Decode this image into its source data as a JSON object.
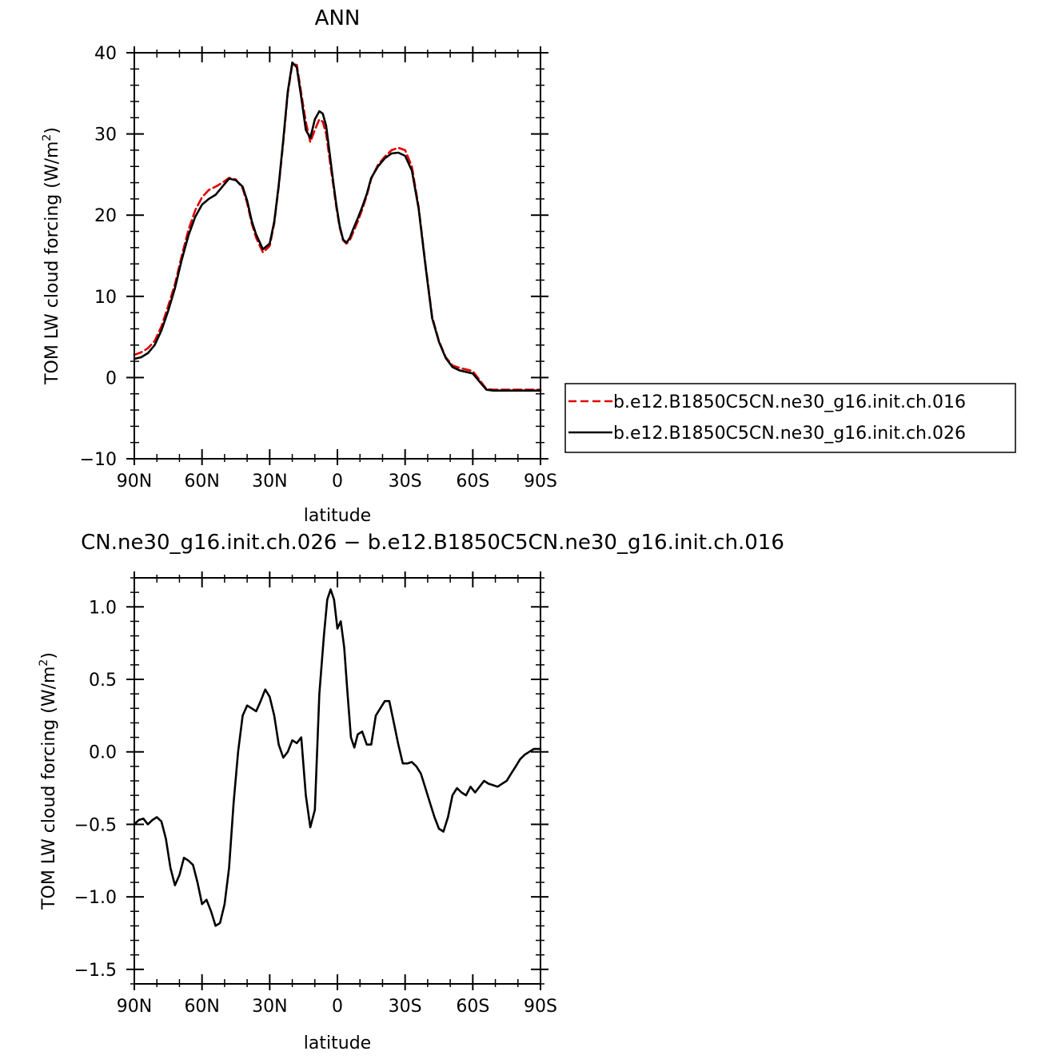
{
  "chart_data": [
    {
      "type": "line",
      "title": "ANN",
      "xlabel": "latitude",
      "ylabel": "TOM LW cloud forcing (W/m",
      "ylabel_sup": "2",
      "ylabel_end": ")",
      "xlim": [
        90,
        -90
      ],
      "ylim": [
        -10,
        40
      ],
      "xticks": [
        90,
        60,
        30,
        0,
        -30,
        -60,
        -90
      ],
      "xtick_labels": [
        "90N",
        "60N",
        "30N",
        "0",
        "30S",
        "60S",
        "90S"
      ],
      "yticks": [
        -10,
        0,
        10,
        20,
        30,
        40
      ],
      "ytick_labels": [
        "−10",
        "0",
        "10",
        "20",
        "30",
        "40"
      ],
      "legend_position": "right",
      "series": [
        {
          "name": "b.e12.B1850C5CN.ne30_g16.init.ch.016",
          "color": "#e00000",
          "dash": "dashed",
          "x": [
            90,
            87,
            84,
            81,
            78,
            75,
            72,
            69,
            66,
            63,
            60,
            57,
            54,
            51,
            48,
            45,
            42,
            40,
            38,
            36,
            33,
            30,
            28,
            26,
            24,
            22,
            20,
            18,
            16,
            14,
            12,
            10,
            8,
            6.5,
            5,
            3.5,
            2,
            0.5,
            -1,
            -2.5,
            -4,
            -5.5,
            -7,
            -9,
            -11,
            -13,
            -15,
            -18,
            -21,
            -24,
            -27,
            -30,
            -33,
            -36,
            -39,
            -42,
            -45,
            -48,
            -51,
            -54,
            -57,
            -60,
            -63,
            -66,
            -69,
            -72,
            -75,
            -78,
            -81,
            -84,
            -87,
            -90
          ],
          "y": [
            2.8,
            3.1,
            3.6,
            4.5,
            6.3,
            8.8,
            11.5,
            15.0,
            18.2,
            20.6,
            22.2,
            23.1,
            23.5,
            24.0,
            24.6,
            24.4,
            23.3,
            21.5,
            19.0,
            17.2,
            15.4,
            16.2,
            19.0,
            23.5,
            29.0,
            35.0,
            38.6,
            38.5,
            35.0,
            31.5,
            29.0,
            30.5,
            31.8,
            31.5,
            30.0,
            27.0,
            24.0,
            21.0,
            18.5,
            16.9,
            16.5,
            16.9,
            17.9,
            19.2,
            20.7,
            22.4,
            24.5,
            26.2,
            27.2,
            28.0,
            28.3,
            28.0,
            26.0,
            21.0,
            14.0,
            7.5,
            4.5,
            2.5,
            1.5,
            1.2,
            1.0,
            0.8,
            -0.3,
            -1.4,
            -1.5,
            -1.5,
            -1.5,
            -1.5,
            -1.5,
            -1.5,
            -1.5,
            -1.5
          ]
        },
        {
          "name": "b.e12.B1850C5CN.ne30_g16.init.ch.026",
          "color": "#000000",
          "dash": "solid",
          "x": [
            90,
            87,
            84,
            81,
            78,
            75,
            72,
            69,
            66,
            63,
            60,
            57,
            54,
            51,
            48,
            45,
            42,
            40,
            38,
            36,
            33,
            30,
            28,
            26,
            24,
            22,
            20,
            18,
            16,
            14,
            12,
            10,
            8,
            6.5,
            5,
            3.5,
            2,
            0.5,
            -1,
            -2.5,
            -4,
            -5.5,
            -7,
            -9,
            -11,
            -13,
            -15,
            -18,
            -21,
            -24,
            -27,
            -30,
            -33,
            -36,
            -39,
            -42,
            -45,
            -48,
            -51,
            -54,
            -57,
            -60,
            -63,
            -66,
            -69,
            -72,
            -75,
            -78,
            -81,
            -84,
            -87,
            -90
          ],
          "y": [
            2.3,
            2.5,
            3.0,
            4.0,
            5.8,
            8.2,
            11.0,
            14.5,
            17.5,
            19.8,
            21.3,
            22.0,
            22.5,
            23.5,
            24.5,
            24.3,
            23.5,
            21.8,
            19.3,
            17.6,
            15.8,
            16.5,
            19.2,
            23.7,
            29.3,
            35.2,
            38.8,
            38.2,
            34.5,
            30.5,
            29.5,
            31.8,
            32.8,
            32.5,
            31.0,
            27.8,
            24.4,
            21.3,
            18.7,
            17.0,
            16.6,
            17.2,
            18.3,
            19.6,
            21.0,
            22.6,
            24.6,
            26.0,
            27.0,
            27.6,
            27.7,
            27.3,
            25.5,
            20.8,
            13.8,
            7.3,
            4.4,
            2.4,
            1.3,
            0.9,
            0.7,
            0.5,
            -0.5,
            -1.5,
            -1.6,
            -1.6,
            -1.6,
            -1.6,
            -1.6,
            -1.6,
            -1.6,
            -1.6
          ]
        }
      ]
    },
    {
      "type": "line",
      "title": "CN.ne30_g16.init.ch.026 − b.e12.B1850C5CN.ne30_g16.init.ch.016",
      "xlabel": "latitude",
      "ylabel": "TOM LW cloud forcing (W/m",
      "ylabel_sup": "2",
      "ylabel_end": ")",
      "xlim": [
        90,
        -90
      ],
      "ylim": [
        -1.6,
        1.2
      ],
      "xticks": [
        90,
        60,
        30,
        0,
        -30,
        -60,
        -90
      ],
      "xtick_labels": [
        "90N",
        "60N",
        "30N",
        "0",
        "30S",
        "60S",
        "90S"
      ],
      "yticks": [
        -1.5,
        -1.0,
        -0.5,
        0.0,
        0.5,
        1.0
      ],
      "ytick_labels": [
        "−1.5",
        "−1.0",
        "−0.5",
        "0.0",
        "0.5",
        "1.0"
      ],
      "series": [
        {
          "color": "#000000",
          "dash": "solid",
          "x": [
            90,
            88,
            86,
            84,
            82,
            80,
            78,
            76,
            74,
            72,
            70,
            68,
            66,
            64,
            62,
            60,
            58,
            56,
            54,
            52,
            50,
            48,
            46,
            44,
            42,
            40,
            38,
            36,
            34,
            32,
            30,
            28,
            26,
            24,
            22,
            20,
            18,
            16,
            14,
            12,
            10,
            8,
            6,
            4.5,
            3,
            1.5,
            0,
            -1.5,
            -3,
            -4.5,
            -6,
            -7.5,
            -9,
            -11,
            -13,
            -15,
            -17,
            -19,
            -21,
            -23,
            -25,
            -27,
            -29,
            -31,
            -33,
            -35,
            -37,
            -39,
            -41,
            -43,
            -45,
            -47,
            -49,
            -51,
            -53,
            -55,
            -57,
            -59,
            -61,
            -63,
            -65,
            -67,
            -69,
            -71,
            -73,
            -75,
            -77,
            -79,
            -81,
            -83,
            -85,
            -87,
            -89,
            -90
          ],
          "y": [
            -0.5,
            -0.47,
            -0.46,
            -0.5,
            -0.47,
            -0.45,
            -0.48,
            -0.6,
            -0.8,
            -0.92,
            -0.85,
            -0.73,
            -0.75,
            -0.78,
            -0.9,
            -1.05,
            -1.02,
            -1.1,
            -1.2,
            -1.18,
            -1.05,
            -0.8,
            -0.35,
            0.0,
            0.25,
            0.32,
            0.3,
            0.28,
            0.35,
            0.43,
            0.38,
            0.25,
            0.05,
            -0.04,
            0.0,
            0.08,
            0.06,
            0.1,
            -0.3,
            -0.52,
            -0.4,
            0.4,
            0.8,
            1.05,
            1.12,
            1.05,
            0.85,
            0.9,
            0.72,
            0.4,
            0.1,
            0.03,
            0.12,
            0.14,
            0.05,
            0.05,
            0.25,
            0.3,
            0.35,
            0.35,
            0.2,
            0.05,
            -0.08,
            -0.08,
            -0.07,
            -0.1,
            -0.15,
            -0.25,
            -0.35,
            -0.45,
            -0.53,
            -0.55,
            -0.45,
            -0.3,
            -0.25,
            -0.28,
            -0.3,
            -0.24,
            -0.28,
            -0.24,
            -0.2,
            -0.22,
            -0.23,
            -0.24,
            -0.22,
            -0.2,
            -0.15,
            -0.1,
            -0.05,
            -0.02,
            0.0,
            0.02,
            0.02,
            0.02
          ]
        }
      ]
    }
  ]
}
